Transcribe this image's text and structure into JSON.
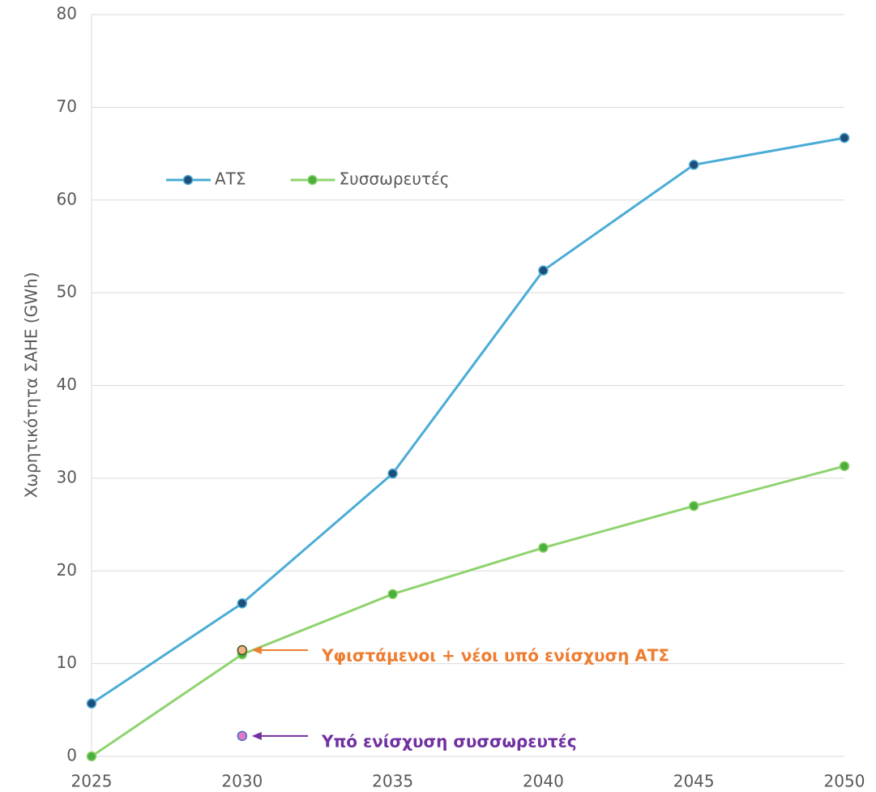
{
  "chart_data": {
    "type": "line",
    "ylabel": "Χωρητικότητα ΣΑΗΕ (GWh)",
    "x": [
      2025,
      2030,
      2035,
      2040,
      2045,
      2050
    ],
    "xlim": [
      2025,
      2050
    ],
    "xticks": [
      2025,
      2030,
      2035,
      2040,
      2045,
      2050
    ],
    "ylim": [
      0,
      80
    ],
    "yticks": [
      0,
      10,
      20,
      30,
      40,
      50,
      60,
      70,
      80
    ],
    "grid": true,
    "legend": "upper left",
    "series": [
      {
        "name": "ΑΤΣ",
        "color": "#4aacd6",
        "marker_color": "#1f4e79",
        "values": [
          5.7,
          16.5,
          30.5,
          52.4,
          63.8,
          66.7
        ]
      },
      {
        "name": "Συσσωρευτές",
        "color": "#8fd36f",
        "marker_color": "#4caf3c",
        "values": [
          0,
          11.0,
          17.5,
          22.5,
          27.0,
          31.3
        ]
      }
    ],
    "annotations": [
      {
        "text": "Υφιστάμενοι + νέοι υπό ενίσχυση ΑΤΣ",
        "x": 2030,
        "y": 11.45,
        "color": "#ed7d31",
        "marker_color": "#f4b183",
        "marker_edge": "#375623"
      },
      {
        "text": "Υπό ενίσχυση συσσωρευτές",
        "x": 2030,
        "y": 2.2,
        "color": "#7030a0",
        "marker_color": "#e377c2",
        "marker_edge": "#4472c4"
      }
    ]
  }
}
